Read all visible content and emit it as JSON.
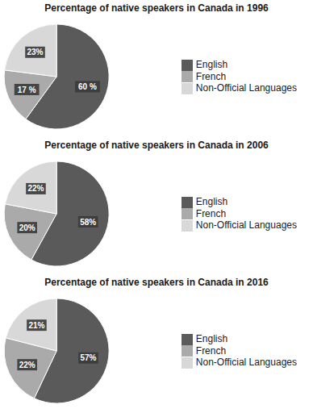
{
  "chart_data": [
    {
      "type": "pie",
      "title": "Percentage of native speakers in Canada in 1996",
      "categories": [
        "English",
        "French",
        "Non-Official Languages"
      ],
      "values": [
        60,
        17,
        23
      ],
      "value_labels": [
        "60 %",
        "17 %",
        "23%"
      ],
      "colors": [
        "#5a5a5a",
        "#aaaaaa",
        "#d8d8d8"
      ],
      "data_labels": true,
      "legend": "right"
    },
    {
      "type": "pie",
      "title": "Percentage of native speakers in Canada in 2006",
      "categories": [
        "English",
        "French",
        "Non-Official Languages"
      ],
      "values": [
        58,
        20,
        22
      ],
      "value_labels": [
        "58%",
        "20%",
        "22%"
      ],
      "colors": [
        "#5a5a5a",
        "#aaaaaa",
        "#d8d8d8"
      ],
      "data_labels": true,
      "legend": "right"
    },
    {
      "type": "pie",
      "title": "Percentage of native speakers in Canada in 2016",
      "categories": [
        "English",
        "French",
        "Non-Official Languages"
      ],
      "values": [
        57,
        22,
        21
      ],
      "value_labels": [
        "57%",
        "22%",
        "21%"
      ],
      "colors": [
        "#5a5a5a",
        "#aaaaaa",
        "#d8d8d8"
      ],
      "data_labels": true,
      "legend": "right"
    }
  ]
}
